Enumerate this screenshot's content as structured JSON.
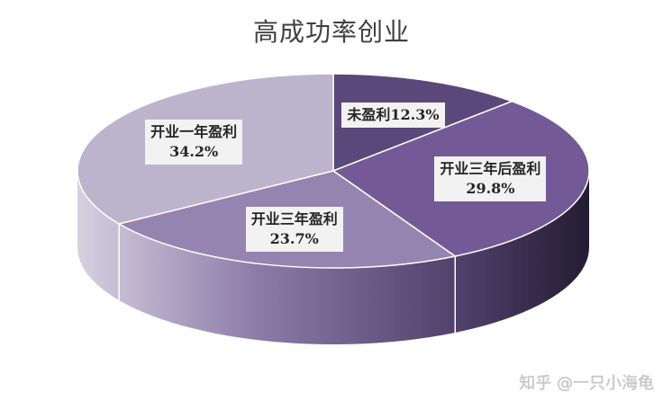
{
  "chart_data": {
    "type": "pie",
    "title": "高成功率创业",
    "slices": [
      {
        "label": "未盈利",
        "value": 12.3,
        "display": "12.3%",
        "color": "#5b4779"
      },
      {
        "label": "开业三年后盈利",
        "value": 29.8,
        "display": "29.8%",
        "color": "#735a97"
      },
      {
        "label": "开业三年盈利",
        "value": 23.7,
        "display": "23.7%",
        "color": "#9684b0"
      },
      {
        "label": "开业一年盈利",
        "value": 34.2,
        "display": "34.2%",
        "color": "#bcb3cc"
      }
    ]
  },
  "watermark": "知乎 @一只小海龟"
}
